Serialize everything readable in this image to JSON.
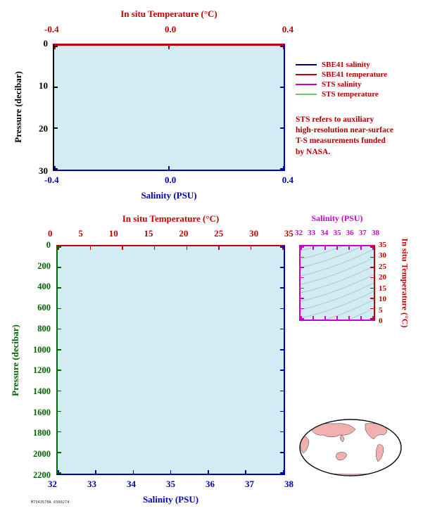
{
  "colors": {
    "red": "#c00000",
    "navy": "#0000b0",
    "magenta": "#cc00cc",
    "dark_green": "#006400",
    "legend_navy": "#000080",
    "legend_green": "#74c476",
    "plot_fill": "#d2ecf5",
    "land_pink": "#f0b0b0"
  },
  "top_chart": {
    "top_title": "In situ Temperature (°C)",
    "top_ticks": [
      "-0.4",
      "0.0",
      "0.4"
    ],
    "left_title": "Pressure (decibar)",
    "left_ticks": [
      "0",
      "10",
      "20",
      "30"
    ],
    "bottom_ticks": [
      "-0.4",
      "0.0",
      "0.4"
    ],
    "bottom_title": "Salinity (PSU)"
  },
  "legend": {
    "entries": [
      {
        "label": "SBE41 salinity",
        "color": "#000080"
      },
      {
        "label": "SBE41 temperature",
        "color": "#c00000"
      },
      {
        "label": "STS salinity",
        "color": "#cc00cc"
      },
      {
        "label": "STS temperature",
        "color": "#74c476"
      }
    ],
    "note_lines": [
      "STS refers to auxiliary",
      "high-resolution near-surface",
      "T-S measurements funded",
      "by NASA."
    ]
  },
  "bottom_chart": {
    "top_title": "In situ Temperature (°C)",
    "top_ticks": [
      "0",
      "5",
      "10",
      "15",
      "20",
      "25",
      "30",
      "35"
    ],
    "left_title": "Pressure (decibar)",
    "left_ticks": [
      "0",
      "200",
      "400",
      "600",
      "800",
      "1000",
      "1200",
      "1400",
      "1600",
      "1800",
      "2000",
      "2200"
    ],
    "bottom_ticks": [
      "32",
      "33",
      "34",
      "35",
      "36",
      "37",
      "38"
    ],
    "bottom_title": "Salinity (PSU)"
  },
  "ts_inset": {
    "top_title": "Salinity (PSU)",
    "top_ticks": [
      "32",
      "33",
      "34",
      "35",
      "36",
      "37",
      "38"
    ],
    "right_ticks": [
      "35",
      "30",
      "25",
      "20",
      "15",
      "10",
      "5",
      "0"
    ],
    "right_title": "In situ Temperature (°C)"
  },
  "footer_code": "M7343570A 0300274",
  "chart_data": [
    {
      "id": "near_surface_profile_panel",
      "type": "line",
      "title": "",
      "axes": {
        "top": {
          "label": "In situ Temperature (°C)",
          "range": [
            -0.4,
            0.4
          ],
          "ticks": [
            -0.4,
            0.0,
            0.4
          ],
          "color": "#c00000"
        },
        "bottom": {
          "label": "Salinity (PSU)",
          "range": [
            -0.4,
            0.4
          ],
          "ticks": [
            -0.4,
            0.0,
            0.4
          ],
          "color": "#0000b0"
        },
        "left": {
          "label": "Pressure (decibar)",
          "range": [
            0,
            30
          ],
          "ticks": [
            0,
            10,
            20,
            30
          ],
          "inverted": true,
          "color": "#000000"
        }
      },
      "grid": false,
      "legend_position": "right-outside",
      "series": [
        {
          "name": "SBE41 salinity",
          "color": "#000080",
          "points": []
        },
        {
          "name": "SBE41 temperature",
          "color": "#c00000",
          "points": []
        },
        {
          "name": "STS salinity",
          "color": "#cc00cc",
          "points": []
        },
        {
          "name": "STS temperature",
          "color": "#74c476",
          "points": []
        }
      ],
      "note": "plot area empty (no profile trace visible); red top frame line at pressure 0"
    },
    {
      "id": "full_depth_profile_panel",
      "type": "line",
      "title": "",
      "axes": {
        "top": {
          "label": "In situ Temperature (°C)",
          "range": [
            0,
            35
          ],
          "ticks": [
            0,
            5,
            10,
            15,
            20,
            25,
            30,
            35
          ],
          "color": "#c00000"
        },
        "bottom": {
          "label": "Salinity (PSU)",
          "range": [
            32,
            38
          ],
          "ticks": [
            32,
            33,
            34,
            35,
            36,
            37,
            38
          ],
          "color": "#0000b0"
        },
        "left": {
          "label": "Pressure (decibar)",
          "range": [
            0,
            2200
          ],
          "ticks": [
            0,
            200,
            400,
            600,
            800,
            1000,
            1200,
            1400,
            1600,
            1800,
            2000,
            2200
          ],
          "inverted": true,
          "color": "#006400"
        }
      },
      "grid": false,
      "series": [],
      "note": "plot area empty (no profile trace visible)"
    },
    {
      "id": "ts_diagram_inset",
      "type": "line",
      "title": "",
      "axes": {
        "top": {
          "label": "Salinity (PSU)",
          "range": [
            32,
            38
          ],
          "ticks": [
            32,
            33,
            34,
            35,
            36,
            37,
            38
          ],
          "color": "#cc00cc"
        },
        "right": {
          "label": "In situ Temperature (°C)",
          "range": [
            0,
            35
          ],
          "ticks": [
            35,
            30,
            25,
            20,
            15,
            10,
            5,
            0
          ],
          "color": "#c00000"
        }
      },
      "grid": false,
      "series": [],
      "note": "background shows curved isopycnal density contours; no T-S data points"
    }
  ]
}
